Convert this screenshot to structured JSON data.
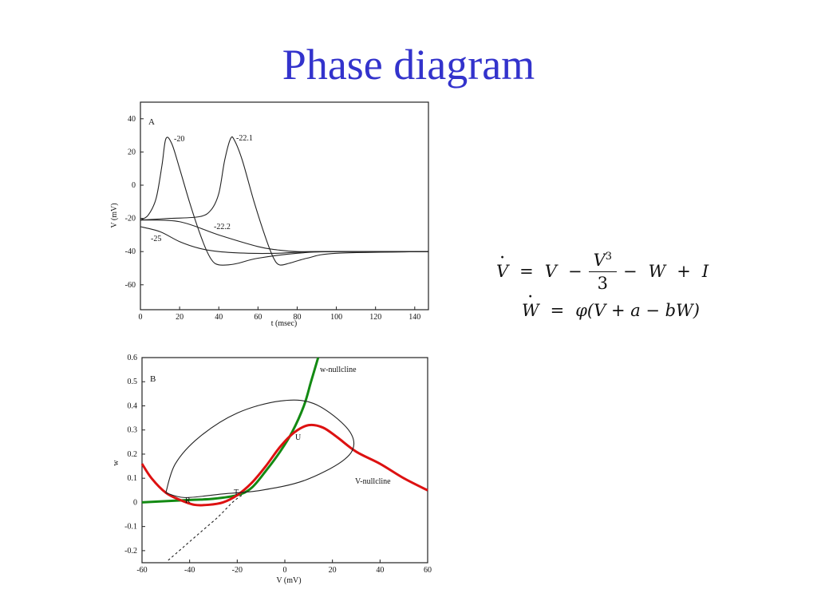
{
  "slide": {
    "title": "Phase diagram"
  },
  "equations": {
    "line1": {
      "lhs": "V",
      "eq": "=",
      "t1": "V",
      "minus1": "−",
      "frac_num": "V",
      "frac_exp": "3",
      "frac_den": "3",
      "minus2": "−",
      "t2": "W",
      "plus": "+",
      "t3": "I"
    },
    "line2": {
      "lhs": "W",
      "eq": "=",
      "rhs": "φ(V + a − bW)"
    }
  },
  "chart_data": [
    {
      "type": "line",
      "panel_label": "A",
      "xlabel": "t (msec)",
      "ylabel": "V (mV)",
      "xlim": [
        0,
        147
      ],
      "ylim": [
        -75,
        50
      ],
      "x_ticks": [
        "0",
        "20",
        "40",
        "60",
        "80",
        "100",
        "120",
        "140"
      ],
      "y_ticks": [
        "40",
        "20",
        "0",
        "-20",
        "-40",
        "-60"
      ],
      "annotations": [
        "-20",
        "-22.1",
        "-22.2",
        "-25"
      ],
      "series": [
        {
          "name": "-20",
          "x": [
            0,
            4,
            8,
            11,
            13,
            16,
            20,
            25,
            30,
            34,
            37,
            40,
            45,
            50,
            60,
            80,
            100,
            147
          ],
          "y": [
            -21,
            -18,
            -8,
            12,
            28,
            25,
            10,
            -10,
            -28,
            -40,
            -46,
            -48,
            -48,
            -47,
            -44,
            -41,
            -40,
            -40
          ]
        },
        {
          "name": "-22.1",
          "x": [
            0,
            15,
            30,
            36,
            40,
            43,
            46,
            48,
            52,
            58,
            64,
            68,
            71,
            76,
            85,
            100,
            147
          ],
          "y": [
            -21,
            -20,
            -19,
            -15,
            -5,
            15,
            28,
            27,
            15,
            -10,
            -32,
            -44,
            -48,
            -47,
            -44,
            -41,
            -40
          ]
        },
        {
          "name": "-22.2",
          "x": [
            0,
            20,
            40,
            60,
            70,
            80,
            100,
            147
          ],
          "y": [
            -21,
            -22,
            -30,
            -37,
            -39,
            -40,
            -40,
            -40
          ]
        },
        {
          "name": "-25",
          "x": [
            0,
            10,
            20,
            30,
            40,
            55,
            70,
            90,
            147
          ],
          "y": [
            -25,
            -28,
            -34,
            -38,
            -40,
            -41,
            -41,
            -40,
            -40
          ]
        }
      ]
    },
    {
      "type": "line",
      "panel_label": "B",
      "xlabel": "V (mV)",
      "ylabel": "w",
      "xlim": [
        -60,
        60
      ],
      "ylim": [
        -0.25,
        0.6
      ],
      "x_ticks": [
        "-60",
        "-40",
        "-20",
        "0",
        "20",
        "40",
        "60"
      ],
      "y_ticks": [
        "0.6",
        "0.5",
        "0.4",
        "0.3",
        "0.2",
        "0.1",
        "0",
        "-0.1",
        "-0.2"
      ],
      "annotations": [
        "w-nullcline",
        "V-nullcline",
        "R",
        "T",
        "U"
      ],
      "series": [
        {
          "name": "w-nullcline",
          "color": "#138a13",
          "x": [
            -60,
            -40,
            -30,
            -20,
            -14,
            -8,
            -2,
            3,
            8,
            11,
            14
          ],
          "y": [
            0,
            0.01,
            0.015,
            0.03,
            0.06,
            0.13,
            0.21,
            0.29,
            0.4,
            0.5,
            0.6
          ]
        },
        {
          "name": "V-nullcline",
          "color": "#dd1111",
          "x": [
            -60,
            -56,
            -50,
            -44,
            -38,
            -32,
            -26,
            -20,
            -14,
            -8,
            -2,
            4,
            10,
            16,
            22,
            30,
            40,
            50,
            60
          ],
          "y": [
            0.16,
            0.1,
            0.04,
            0.01,
            -0.01,
            -0.01,
            0.0,
            0.03,
            0.08,
            0.15,
            0.23,
            0.29,
            0.32,
            0.31,
            0.27,
            0.21,
            0.16,
            0.1,
            0.05
          ]
        },
        {
          "name": "limit cycle",
          "color": "#222222",
          "x": [
            -50,
            -46,
            -36,
            -20,
            -2,
            12,
            25,
            29,
            24,
            8,
            -10,
            -26,
            -42,
            -50
          ],
          "y": [
            0.04,
            0.16,
            0.27,
            0.37,
            0.42,
            0.41,
            0.32,
            0.24,
            0.17,
            0.09,
            0.05,
            0.035,
            0.02,
            0.04
          ]
        },
        {
          "name": "separatrix",
          "color": "#222222",
          "x": [
            -49,
            -42,
            -35,
            -28,
            -22,
            -18
          ],
          "y": [
            -0.24,
            -0.18,
            -0.12,
            -0.06,
            0.0,
            0.03
          ]
        }
      ]
    }
  ]
}
